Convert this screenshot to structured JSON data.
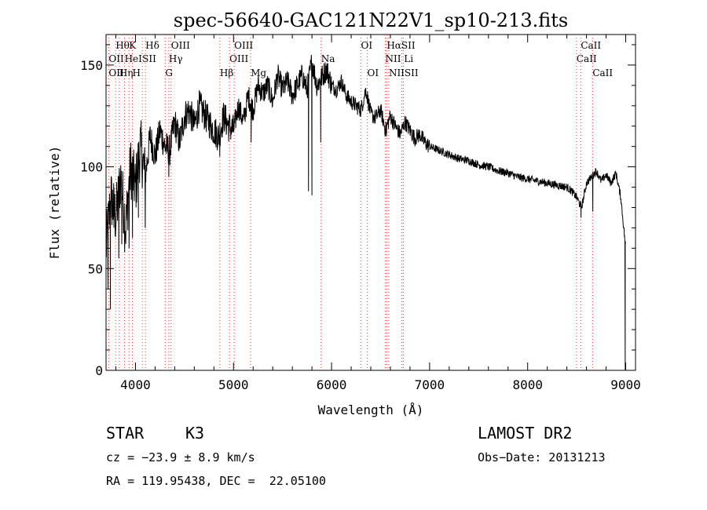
{
  "chart_data": {
    "type": "line",
    "title": "spec-56640-GAC121N22V1_sp10-213.fits",
    "xlabel": "Wavelength (Å)",
    "ylabel": "Flux (relative)",
    "xlim": [
      3700,
      9100
    ],
    "ylim": [
      0,
      165
    ],
    "xticks": [
      4000,
      5000,
      6000,
      7000,
      8000,
      9000
    ],
    "yticks": [
      0,
      50,
      100,
      150
    ],
    "grid": false,
    "series": [
      {
        "x": [
          3700,
          3750,
          3800,
          3850,
          3900,
          3950,
          4000,
          4050,
          4100,
          4150,
          4200,
          4250,
          4300,
          4350,
          4400,
          4450,
          4500,
          4550,
          4600,
          4650,
          4700,
          4750,
          4800,
          4850,
          4900,
          4950,
          5000,
          5050,
          5100,
          5150,
          5200,
          5250,
          5300,
          5350,
          5400,
          5450,
          5500,
          5550,
          5600,
          5650,
          5700,
          5750,
          5800,
          5850,
          5900,
          5950,
          6000,
          6050,
          6100,
          6150,
          6200,
          6250,
          6300,
          6350,
          6400,
          6450,
          6500,
          6550,
          6600,
          6650,
          6700,
          6750,
          6800,
          6850,
          6900,
          6950,
          7000,
          7100,
          7200,
          7300,
          7400,
          7500,
          7600,
          7700,
          7800,
          7900,
          8000,
          8100,
          8200,
          8300,
          8400,
          8450,
          8500,
          8550,
          8600,
          8650,
          8700,
          8750,
          8800,
          8850,
          8900,
          8950,
          9000
        ],
        "y": [
          60,
          85,
          75,
          95,
          70,
          100,
          90,
          110,
          95,
          115,
          105,
          118,
          110,
          108,
          122,
          112,
          125,
          128,
          120,
          130,
          126,
          122,
          118,
          115,
          125,
          120,
          118,
          130,
          122,
          135,
          128,
          140,
          136,
          140,
          132,
          145,
          138,
          142,
          135,
          140,
          145,
          138,
          152,
          140,
          144,
          148,
          140,
          138,
          142,
          135,
          132,
          130,
          128,
          138,
          126,
          124,
          128,
          118,
          125,
          120,
          116,
          122,
          118,
          114,
          116,
          112,
          110,
          108,
          106,
          104,
          103,
          101,
          100,
          98,
          97,
          95,
          94,
          93,
          92,
          91,
          90,
          88,
          85,
          80,
          92,
          95,
          98,
          93,
          96,
          92,
          97,
          85,
          60
        ],
        "spikes": [
          {
            "x": 3720,
            "y": 40
          },
          {
            "x": 3745,
            "y": 30
          },
          {
            "x": 3780,
            "y": 70
          },
          {
            "x": 3830,
            "y": 55
          },
          {
            "x": 3860,
            "y": 62
          },
          {
            "x": 3890,
            "y": 58
          },
          {
            "x": 3935,
            "y": 60
          },
          {
            "x": 3970,
            "y": 65
          },
          {
            "x": 4030,
            "y": 75
          },
          {
            "x": 4100,
            "y": 70
          },
          {
            "x": 4340,
            "y": 95
          },
          {
            "x": 4860,
            "y": 105
          },
          {
            "x": 5180,
            "y": 112
          },
          {
            "x": 5765,
            "y": 88
          },
          {
            "x": 5800,
            "y": 86
          },
          {
            "x": 5890,
            "y": 112
          },
          {
            "x": 6560,
            "y": 115
          },
          {
            "x": 8545,
            "y": 75
          },
          {
            "x": 8665,
            "y": 78
          },
          {
            "x": 8995,
            "y": 0
          }
        ]
      }
    ],
    "annotations": [
      {
        "label": "Hθ",
        "x": 3798,
        "row": 1
      },
      {
        "label": "K",
        "x": 3934,
        "row": 1
      },
      {
        "label": "Hδ",
        "x": 4102,
        "row": 1
      },
      {
        "label": "OIII",
        "x": 4363,
        "row": 1
      },
      {
        "label": "OIII",
        "x": 5007,
        "row": 1
      },
      {
        "label": "OI",
        "x": 6300,
        "row": 1
      },
      {
        "label": "HαSII",
        "x": 6563,
        "row": 1
      },
      {
        "label": "CaII",
        "x": 8542,
        "row": 1
      },
      {
        "label": "OII",
        "x": 3727,
        "row": 2
      },
      {
        "label": "HeI",
        "x": 3889,
        "row": 2
      },
      {
        "label": "SII",
        "x": 4070,
        "row": 2
      },
      {
        "label": "Hγ",
        "x": 4340,
        "row": 2
      },
      {
        "label": "OIII",
        "x": 4959,
        "row": 2
      },
      {
        "label": "Na",
        "x": 5893,
        "row": 2
      },
      {
        "label": "NII Li",
        "x": 6548,
        "row": 2
      },
      {
        "label": "CaII",
        "x": 8498,
        "row": 2
      },
      {
        "label": "OII",
        "x": 3727,
        "row": 3
      },
      {
        "label": "Hη",
        "x": 3835,
        "row": 3
      },
      {
        "label": "H",
        "x": 3968,
        "row": 3
      },
      {
        "label": "G",
        "x": 4304,
        "row": 3
      },
      {
        "label": "Hβ",
        "x": 4861,
        "row": 3
      },
      {
        "label": "Mg",
        "x": 5175,
        "row": 3
      },
      {
        "label": "OI",
        "x": 6364,
        "row": 3
      },
      {
        "label": "NIISII",
        "x": 6584,
        "row": 3
      },
      {
        "label": "CaII",
        "x": 8662,
        "row": 3
      }
    ],
    "line_markers": [
      3727,
      3798,
      3835,
      3889,
      3934,
      3968,
      4070,
      4102,
      4304,
      4340,
      4363,
      4861,
      4959,
      5007,
      5175,
      5893,
      6300,
      6364,
      6548,
      6563,
      6584,
      6717,
      6731,
      8498,
      8542,
      8662
    ]
  },
  "info": {
    "class_label": "STAR",
    "subclass": "K3",
    "survey": "LAMOST DR2",
    "cz": "cz = −23.9 ± 8.9 km/s",
    "obs_date": "Obs−Date: 20131213",
    "coords": "RA = 119.95438, DEC =  22.05100"
  }
}
